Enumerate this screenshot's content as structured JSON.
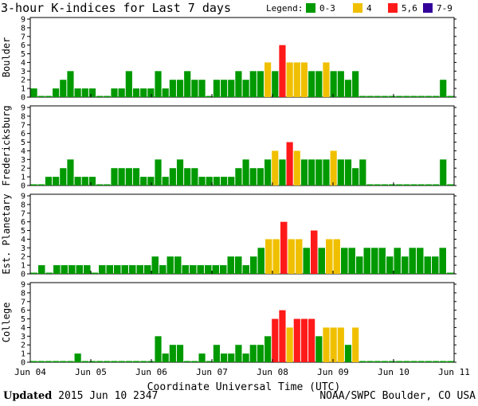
{
  "chart_data": {
    "type": "bar",
    "title": "3-hour K-indices for Last 7 days",
    "xlabel": "Coordinate Universal Time (UTC)",
    "ylim": [
      0,
      9
    ],
    "yticks": [
      "0",
      "1",
      "2",
      "3",
      "4",
      "5",
      "6",
      "7",
      "8",
      "9"
    ],
    "date_ticks": [
      "Jun 04",
      "Jun 05",
      "Jun 06",
      "Jun 07",
      "Jun 08",
      "Jun 09",
      "Jun 10",
      "Jun 11"
    ],
    "legend": {
      "label": "Legend:",
      "items": [
        {
          "label": "0-3",
          "color": "#009900"
        },
        {
          "label": "4",
          "color": "#f0c000"
        },
        {
          "label": "5,6",
          "color": "#ff1a1a"
        },
        {
          "label": "7-9",
          "color": "#330099"
        }
      ]
    },
    "panels": [
      {
        "station": "Boulder",
        "values": [
          1,
          0,
          0,
          1,
          2,
          3,
          1,
          1,
          1,
          0,
          0,
          1,
          1,
          3,
          1,
          1,
          1,
          3,
          1,
          2,
          2,
          3,
          2,
          2,
          0,
          2,
          2,
          2,
          3,
          2,
          3,
          3,
          4,
          3,
          6,
          4,
          4,
          4,
          3,
          3,
          4,
          3,
          3,
          2,
          3,
          0,
          0,
          0,
          0,
          0,
          0,
          0,
          0,
          0,
          0,
          0,
          2,
          0
        ]
      },
      {
        "station": "Fredericksburg",
        "values": [
          0,
          0,
          1,
          1,
          2,
          3,
          1,
          1,
          1,
          0,
          0,
          2,
          2,
          2,
          2,
          1,
          1,
          3,
          1,
          2,
          3,
          2,
          2,
          1,
          1,
          1,
          1,
          1,
          2,
          3,
          2,
          2,
          3,
          4,
          3,
          5,
          4,
          3,
          3,
          3,
          3,
          4,
          3,
          3,
          2,
          3,
          0,
          0,
          0,
          0,
          0,
          0,
          0,
          0,
          0,
          0,
          3,
          0
        ]
      },
      {
        "station": "Est. Planetary",
        "values": [
          0,
          1,
          0,
          1,
          1,
          1,
          1,
          1,
          0,
          1,
          1,
          1,
          1,
          1,
          1,
          1,
          2,
          1,
          2,
          2,
          1,
          1,
          1,
          1,
          1,
          1,
          2,
          2,
          1,
          2,
          3,
          4,
          4,
          6,
          4,
          4,
          3,
          5,
          3,
          4,
          4,
          3,
          3,
          2,
          3,
          3,
          3,
          2,
          3,
          2,
          3,
          3,
          2,
          2,
          3,
          0
        ]
      },
      {
        "station": "College",
        "values": [
          0,
          0,
          0,
          0,
          0,
          0,
          1,
          0,
          0,
          0,
          0,
          0,
          0,
          0,
          0,
          0,
          0,
          3,
          1,
          2,
          2,
          0,
          0,
          1,
          0,
          2,
          1,
          1,
          2,
          1,
          2,
          2,
          3,
          5,
          6,
          4,
          5,
          5,
          5,
          3,
          4,
          4,
          4,
          2,
          4,
          0,
          0,
          0,
          0,
          0,
          0,
          0,
          0,
          0,
          0,
          0,
          0,
          0
        ]
      }
    ]
  },
  "footer": {
    "updated_label": "Updated",
    "updated_value": "2015 Jun 10 2347",
    "source": "NOAA/SWPC Boulder, CO USA"
  }
}
